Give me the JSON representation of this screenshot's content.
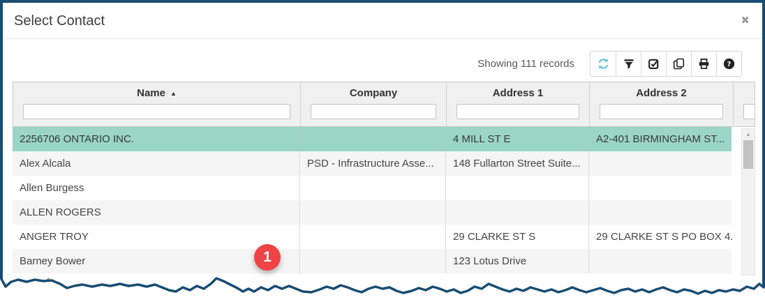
{
  "dialog": {
    "title": "Select Contact",
    "close_glyph": "✖"
  },
  "toolbar": {
    "records_text": "Showing 111 records",
    "buttons": [
      {
        "icon": "refresh"
      },
      {
        "icon": "filter"
      },
      {
        "icon": "select-checkbox"
      },
      {
        "icon": "copy"
      },
      {
        "icon": "print"
      },
      {
        "icon": "help"
      }
    ]
  },
  "table": {
    "columns": [
      {
        "key": "name",
        "label": "Name",
        "sorted": "asc",
        "sort_glyph": "▲"
      },
      {
        "key": "company",
        "label": "Company"
      },
      {
        "key": "address1",
        "label": "Address 1"
      },
      {
        "key": "address2",
        "label": "Address 2"
      }
    ],
    "selected_row_index": 0,
    "rows": [
      {
        "name": "2256706 ONTARIO INC.",
        "company": "",
        "address1": "4 MILL ST E",
        "address2": "A2-401 BIRMINGHAM ST..."
      },
      {
        "name": "Alex Alcala",
        "company": "PSD - Infrastructure Asse...",
        "address1": "148 Fullarton Street Suite...",
        "address2": ""
      },
      {
        "name": "Allen Burgess",
        "company": "",
        "address1": "",
        "address2": ""
      },
      {
        "name": "ALLEN ROGERS",
        "company": "",
        "address1": "",
        "address2": ""
      },
      {
        "name": "ANGER TROY",
        "company": "",
        "address1": "29 CLARKE ST S",
        "address2": "29 CLARKE ST S PO BOX 4..."
      },
      {
        "name": "Barney Bower",
        "company": "",
        "address1": "123 Lotus Drive",
        "address2": ""
      }
    ]
  },
  "scrollbar": {
    "up_glyph": "▲"
  },
  "annotation": {
    "step_badge": "1"
  },
  "footer": {
    "partial_text": "1"
  },
  "colors": {
    "frame": "#194d72",
    "selected_row": "#9ad5c5",
    "badge_red": "#ee4445",
    "refresh_icon_blue": "#62c4e0",
    "header_bg": "#f0f0f0"
  }
}
